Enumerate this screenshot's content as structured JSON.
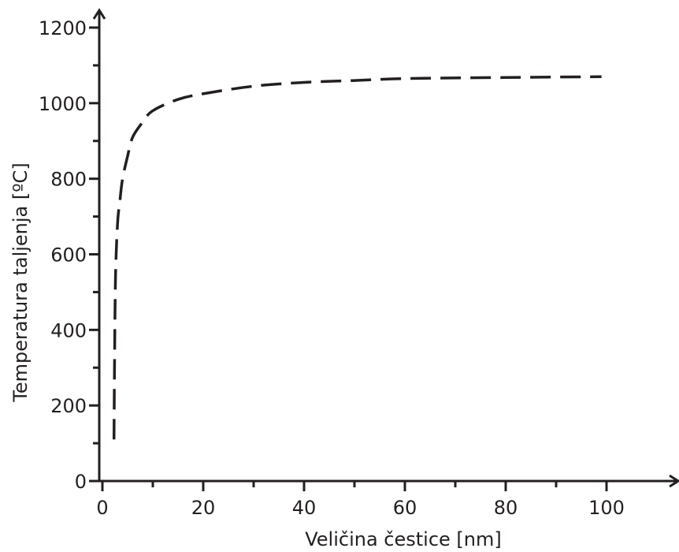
{
  "chart_data": {
    "type": "line",
    "title": "",
    "xlabel": "Veličina čestice [nm]",
    "ylabel": "Temperatura taljenja [ºC]",
    "xlim": [
      0,
      115
    ],
    "ylim": [
      0,
      1250
    ],
    "x_ticks": [
      0,
      20,
      40,
      60,
      80,
      100
    ],
    "x_tick_labels": [
      "0",
      "20",
      "40",
      "60",
      "80",
      "100"
    ],
    "x_minor_ticks": [
      10,
      30,
      50,
      70,
      90
    ],
    "y_ticks": [
      0,
      200,
      400,
      600,
      800,
      1000,
      1200
    ],
    "y_tick_labels": [
      "0",
      "200",
      "400",
      "600",
      "800",
      "1000",
      "1200"
    ],
    "y_minor_ticks": [
      100,
      300,
      500,
      700,
      900,
      1100
    ],
    "grid": false,
    "line_style": "dashed",
    "color": "#231f20",
    "series": [
      {
        "x": [
          2.3,
          2.4,
          2.6,
          3,
          3.5,
          4,
          5,
          6,
          8,
          10,
          15,
          20,
          30,
          40,
          50,
          60,
          80,
          99
        ],
        "y": [
          110,
          300,
          540,
          680,
          745,
          800,
          860,
          910,
          950,
          980,
          1010,
          1025,
          1045,
          1055,
          1060,
          1065,
          1068,
          1070
        ]
      }
    ]
  }
}
